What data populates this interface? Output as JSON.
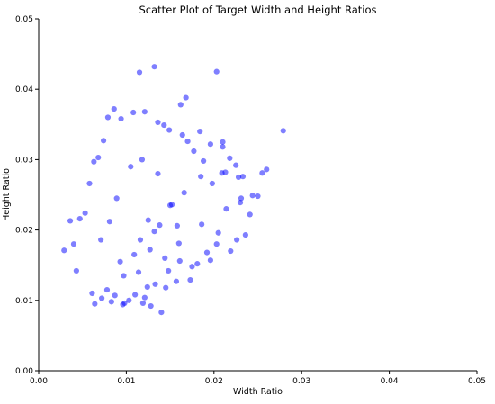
{
  "chart_data": {
    "type": "scatter",
    "title": "Scatter Plot of Target Width and Height Ratios",
    "xlabel": "Width Ratio",
    "ylabel": "Height Ratio",
    "xlim": [
      0.0,
      0.05
    ],
    "ylim": [
      0.0,
      0.05
    ],
    "xticks": [
      "0.00",
      "0.01",
      "0.02",
      "0.03",
      "0.04",
      "0.05"
    ],
    "yticks": [
      "0.00",
      "0.01",
      "0.02",
      "0.03",
      "0.04",
      "0.05"
    ],
    "grid": false,
    "legend": "none",
    "marker_color": "#0000ff",
    "marker_alpha": 0.5,
    "series": [
      {
        "x": [
          0.0132,
          0.0115,
          0.0203,
          0.0168,
          0.0162,
          0.0279,
          0.026,
          0.0233,
          0.0255,
          0.0244,
          0.023,
          0.0213,
          0.0196,
          0.0184,
          0.0231,
          0.021,
          0.025,
          0.0225,
          0.0218,
          0.0209,
          0.0029,
          0.0036,
          0.004,
          0.0043,
          0.0047,
          0.0053,
          0.0058,
          0.0063,
          0.0068,
          0.0074,
          0.0079,
          0.0086,
          0.0094,
          0.0108,
          0.0121,
          0.0136,
          0.0143,
          0.021,
          0.0228,
          0.0188,
          0.0177,
          0.017,
          0.0164,
          0.0149,
          0.0121,
          0.0119,
          0.0128,
          0.014,
          0.0103,
          0.0098,
          0.0083,
          0.0064,
          0.0061,
          0.0072,
          0.0078,
          0.0087,
          0.0096,
          0.011,
          0.0145,
          0.0157,
          0.0173,
          0.0181,
          0.0196,
          0.0203,
          0.0219,
          0.0226,
          0.0236,
          0.0241,
          0.0198,
          0.0185,
          0.015,
          0.0118,
          0.0136,
          0.0105,
          0.0125,
          0.0132,
          0.0116,
          0.0138,
          0.0127,
          0.0109,
          0.0093,
          0.0144,
          0.0158,
          0.0152,
          0.0166,
          0.0089,
          0.0071,
          0.0081,
          0.0097,
          0.0114,
          0.0124,
          0.0133,
          0.0148,
          0.0161,
          0.0175,
          0.0192,
          0.0205,
          0.0214,
          0.0186,
          0.016
        ],
        "y": [
          0.0432,
          0.0424,
          0.0425,
          0.0388,
          0.0378,
          0.0341,
          0.0286,
          0.0276,
          0.0281,
          0.0249,
          0.0239,
          0.0282,
          0.0322,
          0.034,
          0.0245,
          0.0318,
          0.0248,
          0.0292,
          0.0302,
          0.0281,
          0.0171,
          0.0213,
          0.018,
          0.0142,
          0.0216,
          0.0224,
          0.0266,
          0.0297,
          0.0303,
          0.0327,
          0.036,
          0.0372,
          0.0358,
          0.0367,
          0.0368,
          0.0353,
          0.0349,
          0.0325,
          0.0275,
          0.0298,
          0.0312,
          0.0326,
          0.0335,
          0.0342,
          0.0104,
          0.0096,
          0.0092,
          0.0083,
          0.01,
          0.0096,
          0.0098,
          0.0095,
          0.011,
          0.0103,
          0.0115,
          0.0107,
          0.0094,
          0.0108,
          0.0118,
          0.0127,
          0.0129,
          0.0152,
          0.0157,
          0.018,
          0.017,
          0.0186,
          0.0193,
          0.0222,
          0.0266,
          0.0276,
          0.0235,
          0.03,
          0.028,
          0.029,
          0.0214,
          0.0198,
          0.0186,
          0.0207,
          0.0172,
          0.0165,
          0.0155,
          0.016,
          0.0206,
          0.0236,
          0.0253,
          0.0245,
          0.0186,
          0.0212,
          0.0135,
          0.014,
          0.0119,
          0.0123,
          0.0142,
          0.0156,
          0.0148,
          0.0168,
          0.0196,
          0.023,
          0.0208,
          0.0181
        ]
      }
    ]
  }
}
